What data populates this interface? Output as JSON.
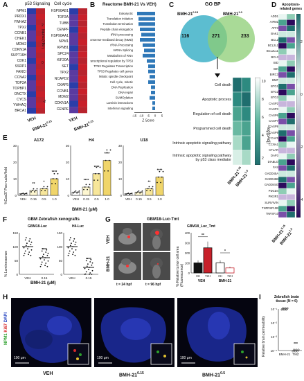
{
  "panels": {
    "A": {
      "label": "A",
      "title_left": "p53 Signaling",
      "title_right": "Cell cycle",
      "genes_left": [
        "NPM1",
        "PRDX1",
        "YWHAZ",
        "TPX2",
        "CCNB1",
        "CHEK1",
        "MDM2",
        "CDKN1A",
        "SUPT16H",
        "CDK1",
        "SSRP1",
        "FANCI",
        "CCNA2",
        "TOP2A",
        "TOPBP1",
        "ONCTX",
        "CYCS",
        "YWHAQ",
        "BRCA1"
      ],
      "genes_right": [
        "HSP90AB1",
        "TOP2A",
        "TUBB",
        "CENPF",
        "HSP90AA1",
        "NPM1",
        "KPNB1",
        "SPC24",
        "KIF20A",
        "SET",
        "TPX2",
        "NCAPD2",
        "CKAP5",
        "CCNB1",
        "MDM2",
        "CDKN1A",
        "CENPE"
      ],
      "colorbar_label": "Log₂(counts)",
      "colorbar_ticks": [
        "2",
        "0",
        "-2"
      ],
      "col_labels": [
        "VEH",
        "BMH-21",
        "VEH",
        "BMH-21"
      ],
      "col_superscript": "0.15"
    },
    "B": {
      "label": "B",
      "title": "Reactome BMH-21 Vs VEH)",
      "xlabel": "Z Score",
      "xticks": [
        "-15",
        "-10",
        "-5",
        "0",
        "5"
      ]
    },
    "C": {
      "label": "C",
      "title": "GO BP",
      "set_left": "BMH-21",
      "set_left_sup": "0.15",
      "set_right": "BMH-21",
      "set_right_sup": "1.0",
      "n_left": "116",
      "n_overlap": "271",
      "n_right": "233",
      "terms": [
        "Cell death",
        "Apoptotic process",
        "Regulation of cell death",
        "Programmed cell death",
        "Intrinsic apoptotic signaling pathway",
        "Intrinsic apoptotic signaling pathway by p53 class mediator"
      ],
      "colorbar_label": "−log(pAdj)",
      "colorbar_ticks": [
        "10",
        "8",
        "6",
        "4",
        "2"
      ],
      "col_labels": [
        "BMH-21",
        "BMH-21"
      ],
      "col_sups": [
        "0.15",
        "1.0"
      ]
    },
    "D": {
      "label": "D",
      "title": "Apoptosis-related genes",
      "genes": [
        "ADD1",
        "AIFM1",
        "ATF3",
        "BAK1",
        "BCL2",
        "BCL2L1",
        "BCL2L11",
        "BCL3",
        "BID",
        "BIK",
        "BIRC3",
        "BMF",
        "BTG1",
        "BTG2",
        "BTG3",
        "CASP2",
        "CASP3",
        "CASP6",
        "CASP7",
        "CASP8",
        "CASP9",
        "CAV1",
        "CCNA1",
        "CFLAR",
        "DAP3",
        "DIABLO",
        "FAS",
        "GADD45A",
        "GADD45B",
        "GADD45G",
        "PDCD4",
        "PIK3R1",
        "SURVIVIN",
        "TNFRSF10B",
        "TNFSF10"
      ],
      "colorbar_label": "−log(pAdj)",
      "colorbar_ticks": [
        "2",
        "0",
        "-2",
        "-4"
      ],
      "col_labels": [
        "BMH-21",
        "BMH-21"
      ],
      "col_sups": [
        "0.15",
        "1.0"
      ]
    },
    "E": {
      "label": "E",
      "ylabel": "%Cas37 Pos nuclei/field",
      "xlabel": "BMH-21 (μM)",
      "xticks": [
        "VEH",
        "0.15",
        "0.5",
        "1.0"
      ],
      "sig_a172": [
        "",
        "**",
        "*",
        "****"
      ],
      "sig_h4": [
        "",
        "****",
        "****",
        "****"
      ],
      "sig_u18": [
        "",
        "",
        "**",
        "****"
      ]
    },
    "F": {
      "label": "F",
      "title": "GBM Zebrafish xenografts",
      "sub1": "GBM18-Luc",
      "sub2": "H4-Luc",
      "ylabel": "% Luminescence",
      "xticks": [
        "VEH",
        "0.15"
      ],
      "xlabel": "BMH-21 (μM)",
      "sig1": "****",
      "sig2": "****"
    },
    "G": {
      "label": "G",
      "title": "GBM18-Luc-Tmt",
      "row_labels": [
        "VEH",
        "BMH-21"
      ],
      "time_labels": [
        "t = 24 hpf",
        "t = 96 hpf"
      ],
      "chart_title": "GBM18_Luc_Tmt",
      "ylabel": "% Relative tumor cell area (Fluorescence)",
      "xticks": [
        "0H",
        "72H",
        "0H",
        "72H"
      ],
      "group_labels": [
        "VEH",
        "BMH-21"
      ],
      "sig": [
        "**",
        "*"
      ]
    },
    "H": {
      "label": "H",
      "channel_labels": [
        "NPM1",
        "Ki67",
        "DAPI"
      ],
      "panel_labels": [
        "VEH",
        "BMH-21",
        "BMH-21"
      ],
      "panel_sups": [
        "",
        "0.15",
        "0.5"
      ],
      "scale": "100 μm"
    },
    "I": {
      "label": "I",
      "title": "Zebrafish brain tissue (N = 6)",
      "ylabel": "Relative brain permeability",
      "yticks": [
        "10⁻¹",
        "10⁻²",
        "10⁻³",
        "10⁻⁴"
      ],
      "xticks": [
        "BMH-21",
        "TMZ"
      ],
      "sig": "***"
    }
  },
  "chart_data": [
    {
      "type": "bar",
      "panel": "B",
      "categories": [
        "Eukaryotic",
        "Translation initiation",
        "Translation termination",
        "Peptide chain elongation",
        "tRNA processing",
        "Nonsense-mediated decay (NMD)",
        "rRNA Processing",
        "mRNA Splicing",
        "Metabolism of RNA",
        "Transcriptional regulation by TP53",
        "TP53 Regulates Transcription",
        "TP53 Regulates cell genes",
        "Mitotic spindle checkpoint",
        "Cell cycle, mitotic",
        "DNA Replication",
        "DNA repair",
        "SUMOylation",
        "Laminin interactions",
        "Interferon signaling"
      ],
      "values": [
        -13,
        -12,
        -12,
        -11,
        -10,
        -11,
        -9,
        -8,
        -9,
        -6,
        -5,
        -5,
        -4,
        -5,
        -3,
        -3,
        -4,
        -2,
        -2
      ],
      "xlabel": "Z Score",
      "xlim": [
        -15,
        5
      ]
    },
    {
      "type": "bar",
      "panel": "E",
      "subplots": [
        {
          "title": "A172",
          "categories": [
            "VEH",
            "0.15",
            "0.5",
            "1.0"
          ],
          "values": [
            1,
            3,
            4,
            10
          ],
          "ylim": [
            0,
            30
          ]
        },
        {
          "title": "H4",
          "categories": [
            "VEH",
            "0.15",
            "0.5",
            "1.0"
          ],
          "values": [
            2,
            5,
            13,
            21
          ],
          "ylim": [
            0,
            30
          ]
        },
        {
          "title": "U18",
          "categories": [
            "VEH",
            "0.15",
            "0.5",
            "1.0"
          ],
          "values": [
            1,
            2,
            4,
            11
          ],
          "ylim": [
            0,
            30
          ]
        }
      ],
      "ylabel": "%Cas37 Pos nuclei/field",
      "xlabel": "BMH-21 (μM)"
    },
    {
      "type": "scatter",
      "panel": "F",
      "subplots": [
        {
          "title": "GBM18-Luc",
          "categories": [
            "VEH",
            "0.15"
          ],
          "means": [
            100,
            60
          ],
          "ylim": [
            0,
            150
          ]
        },
        {
          "title": "H4-Luc",
          "categories": [
            "VEH",
            "0.15"
          ],
          "means": [
            100,
            25
          ],
          "ylim": [
            0,
            150
          ]
        }
      ],
      "ylabel": "% Luminescence"
    },
    {
      "type": "bar",
      "panel": "G",
      "title": "GBM18_Luc_Tmt",
      "categories": [
        "VEH 0H",
        "VEH 72H",
        "BMH-21 0H",
        "BMH-21 72H"
      ],
      "values": [
        100,
        250,
        100,
        50
      ],
      "ylim": [
        0,
        400
      ],
      "yticks": [
        0,
        100,
        200,
        300,
        400
      ],
      "ylabel": "% Relative tumor cell area (Fluorescence)"
    },
    {
      "type": "scatter",
      "panel": "I",
      "title": "Zebrafish brain tissue (N = 6)",
      "categories": [
        "BMH-21",
        "TMZ"
      ],
      "values": [
        0.1,
        0.0001
      ],
      "yscale": "log",
      "ylim": [
        0.0001,
        0.1
      ],
      "ylabel": "Relative brain permeability"
    }
  ],
  "colors": {
    "heat_red": "#c8202a",
    "heat_blue": "#2b3da8",
    "heat_purple": "#8a3a8a",
    "venn_left": "#3fb1c8",
    "venn_right": "#8ccd74",
    "bar_blue": "#2f78b8",
    "bar_yellow": "#f5e8a0",
    "teal_dark": "#1f6e6e",
    "teal_light": "#e9f6f2"
  }
}
